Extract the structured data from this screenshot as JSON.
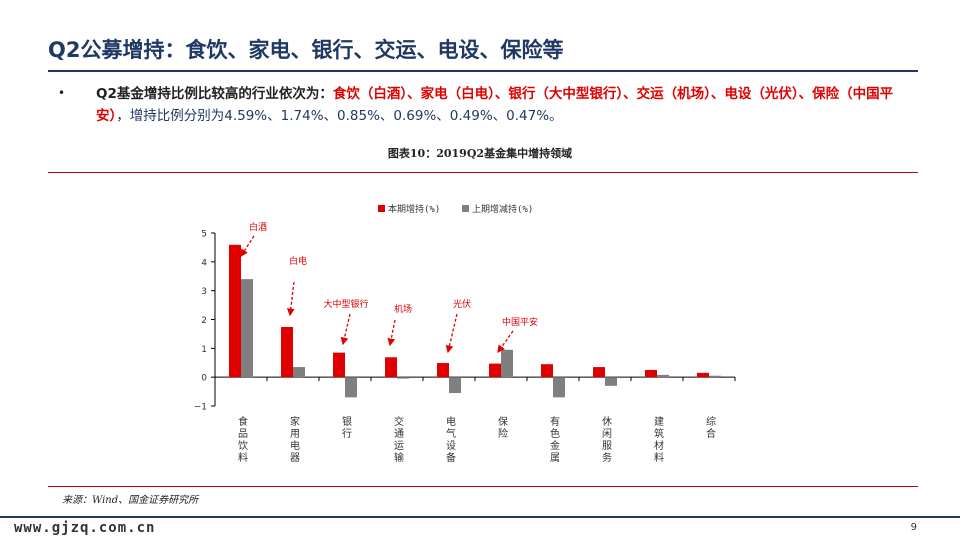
{
  "slide": {
    "title": "Q2公募增持：食饮、家电、银行、交运、电设、保险等",
    "bullet": {
      "lead": "Q2基金增持比例比较高的行业依次为：",
      "highlight": "食饮（白酒）、家电（白电）、银行（大中型银行）、交运（机场）、电设（光伏）、保险（中国平安）",
      "sep": "，",
      "tail": "增持比例分别为4.59%、1.74%、0.85%、0.69%、0.49%、0.47%。"
    },
    "figure_caption": "图表10：2019Q2基金集中增持领域",
    "source": "来源：Wind、国金证券研究所",
    "website": "www.gjzq.com.cn",
    "page_number": "9"
  },
  "colors": {
    "primary": "#1f3864",
    "series1": "#e00000",
    "series2": "#7f7f7f",
    "rule": "#c00000"
  },
  "chart_data": {
    "type": "bar",
    "categories": [
      "食品饮料",
      "家用电器",
      "银行",
      "交通运输",
      "电气设备",
      "保险",
      "有色金属",
      "休闲服务",
      "建筑材料",
      "综合"
    ],
    "series": [
      {
        "name": "本期增持(%)",
        "values": [
          4.59,
          1.74,
          0.85,
          0.69,
          0.49,
          0.47,
          0.45,
          0.35,
          0.25,
          0.15
        ]
      },
      {
        "name": "上期增减持(%)",
        "values": [
          3.4,
          0.35,
          -0.7,
          -0.05,
          -0.55,
          0.95,
          -0.7,
          -0.3,
          0.08,
          0.05
        ]
      }
    ],
    "ylim": [
      -1,
      5
    ],
    "yticks": [
      -1,
      0,
      1,
      2,
      3,
      4,
      5
    ],
    "ytick_labels": [
      "−1",
      "0",
      "1",
      "2",
      "3",
      "4",
      "5"
    ],
    "legend_position": "top-center",
    "grid": false,
    "annotations": [
      {
        "text": "白酒",
        "category": "食品饮料"
      },
      {
        "text": "白电",
        "category": "家用电器"
      },
      {
        "text": "大中型银行",
        "category": "银行"
      },
      {
        "text": "机场",
        "category": "交通运输"
      },
      {
        "text": "光伏",
        "category": "电气设备"
      },
      {
        "text": "中国平安",
        "category": "保险"
      }
    ]
  }
}
